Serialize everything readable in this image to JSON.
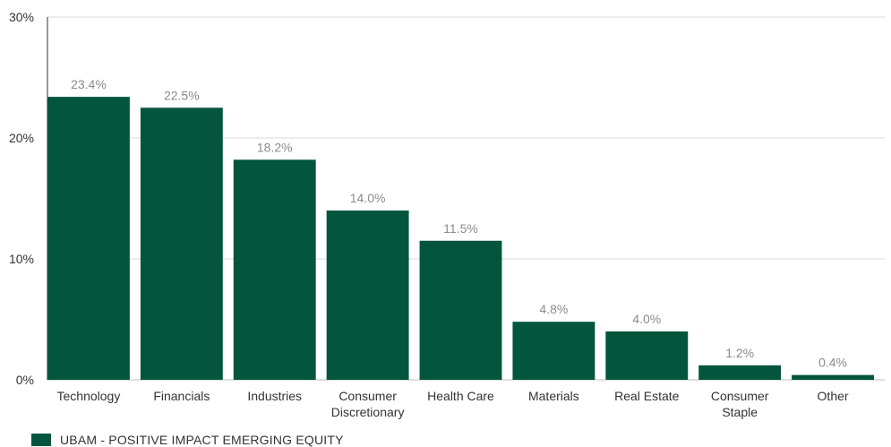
{
  "chart_data": {
    "type": "bar",
    "categories": [
      [
        "Technology"
      ],
      [
        "Financials"
      ],
      [
        "Industries"
      ],
      [
        "Consumer",
        "Discretionary"
      ],
      [
        "Health Care"
      ],
      [
        "Materials"
      ],
      [
        "Real Estate"
      ],
      [
        "Consumer",
        "Staple"
      ],
      [
        "Other"
      ]
    ],
    "series": [
      {
        "name": "UBAM - POSITIVE IMPACT EMERGING EQUITY",
        "values": [
          23.4,
          22.5,
          18.2,
          14.0,
          11.5,
          4.8,
          4.0,
          1.2,
          0.4
        ],
        "labels": [
          "23.4%",
          "22.5%",
          "18.2%",
          "14.0%",
          "11.5%",
          "4.8%",
          "4.0%",
          "1.2%",
          "0.4%"
        ],
        "color": "#03563d"
      }
    ],
    "ylim": [
      0,
      30
    ],
    "yticks": [
      0,
      10,
      20,
      30
    ],
    "ytick_labels": [
      "0%",
      "10%",
      "20%",
      "30%"
    ],
    "grid": true,
    "legend_position": "bottom-left",
    "title": "",
    "xlabel": "",
    "ylabel": ""
  }
}
